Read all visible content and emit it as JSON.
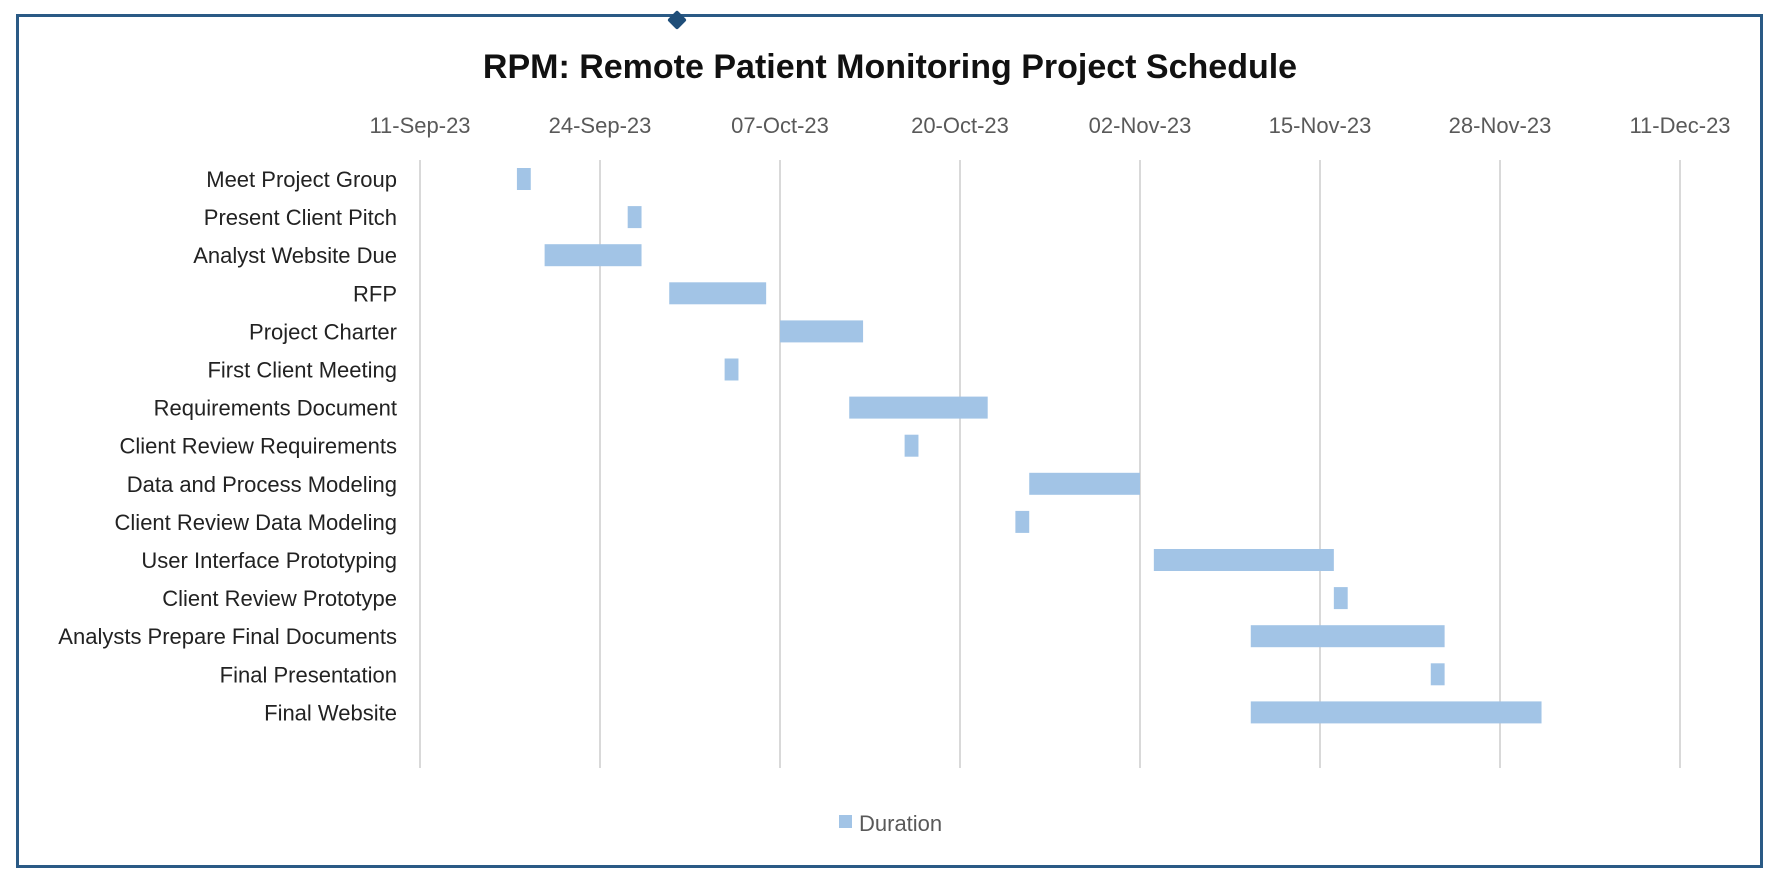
{
  "chart_data": {
    "type": "bar",
    "orientation": "horizontal",
    "title": "RPM: Remote Patient Monitoring Project Schedule",
    "x_axis": {
      "position": "top",
      "min": "2023-09-11",
      "max": "2023-12-11",
      "tick_labels": [
        "11-Sep-23",
        "24-Sep-23",
        "07-Oct-23",
        "20-Oct-23",
        "02-Nov-23",
        "15-Nov-23",
        "28-Nov-23",
        "11-Dec-23"
      ],
      "tick_dates": [
        "2023-09-11",
        "2023-09-24",
        "2023-10-07",
        "2023-10-20",
        "2023-11-02",
        "2023-11-15",
        "2023-11-28",
        "2023-12-11"
      ]
    },
    "grid": true,
    "legend": {
      "position": "bottom",
      "entries": [
        "Duration"
      ]
    },
    "series": [
      {
        "name": "Duration",
        "color": "#a2c4e6",
        "tasks": [
          {
            "label": "Meet Project Group",
            "start": "2023-09-18",
            "end": "2023-09-19"
          },
          {
            "label": "Present Client Pitch",
            "start": "2023-09-26",
            "end": "2023-09-27"
          },
          {
            "label": "Analyst Website Due",
            "start": "2023-09-20",
            "end": "2023-09-27"
          },
          {
            "label": "RFP",
            "start": "2023-09-29",
            "end": "2023-10-06"
          },
          {
            "label": "Project Charter",
            "start": "2023-10-07",
            "end": "2023-10-13"
          },
          {
            "label": "First Client Meeting",
            "start": "2023-10-03",
            "end": "2023-10-04"
          },
          {
            "label": "Requirements Document",
            "start": "2023-10-12",
            "end": "2023-10-22"
          },
          {
            "label": "Client Review Requirements",
            "start": "2023-10-16",
            "end": "2023-10-17"
          },
          {
            "label": "Data and Process Modeling",
            "start": "2023-10-25",
            "end": "2023-11-02"
          },
          {
            "label": "Client Review Data Modeling",
            "start": "2023-10-24",
            "end": "2023-10-25"
          },
          {
            "label": "User Interface Prototyping",
            "start": "2023-11-03",
            "end": "2023-11-16"
          },
          {
            "label": "Client Review Prototype",
            "start": "2023-11-16",
            "end": "2023-11-17"
          },
          {
            "label": "Analysts Prepare Final Documents",
            "start": "2023-11-10",
            "end": "2023-11-24"
          },
          {
            "label": "Final Presentation",
            "start": "2023-11-23",
            "end": "2023-11-24"
          },
          {
            "label": "Final Website",
            "start": "2023-11-10",
            "end": "2023-12-01"
          }
        ]
      }
    ]
  }
}
